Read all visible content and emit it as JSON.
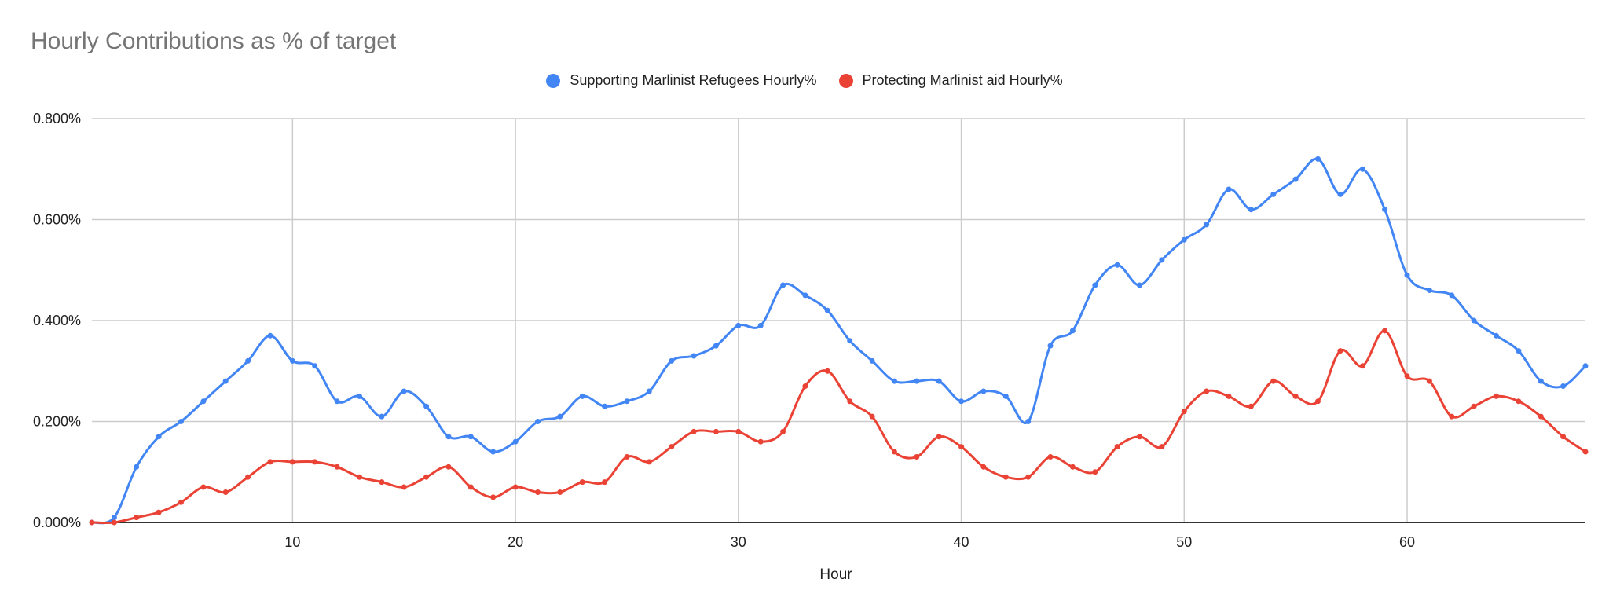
{
  "chart_data": {
    "type": "line",
    "title": "Hourly Contributions as % of target",
    "xlabel": "Hour",
    "ylabel": "",
    "xlim": [
      1,
      68
    ],
    "ylim": [
      0,
      0.008
    ],
    "x_ticks": [
      10,
      20,
      30,
      40,
      50,
      60
    ],
    "y_ticks": [
      0,
      0.002,
      0.004,
      0.006,
      0.008
    ],
    "y_tick_labels": [
      "0.000%",
      "0.200%",
      "0.400%",
      "0.600%",
      "0.800%"
    ],
    "grid": true,
    "legend_position": "top",
    "series": [
      {
        "name": "Supporting Marlinist Refugees Hourly%",
        "color": "#4285f4",
        "x": [
          1,
          2,
          3,
          4,
          5,
          6,
          7,
          8,
          9,
          10,
          11,
          12,
          13,
          14,
          15,
          16,
          17,
          18,
          19,
          20,
          21,
          22,
          23,
          24,
          25,
          26,
          27,
          28,
          29,
          30,
          31,
          32,
          33,
          34,
          35,
          36,
          37,
          38,
          39,
          40,
          41,
          42,
          43,
          44,
          45,
          46,
          47,
          48,
          49,
          50,
          51,
          52,
          53,
          54,
          55,
          56,
          57,
          58,
          59,
          60,
          61,
          62,
          63,
          64,
          65,
          66,
          67,
          68
        ],
        "values": [
          0.0,
          0.0001,
          0.0011,
          0.0017,
          0.002,
          0.0024,
          0.0028,
          0.0032,
          0.0037,
          0.0032,
          0.0031,
          0.0024,
          0.0025,
          0.0021,
          0.0026,
          0.0023,
          0.0017,
          0.0017,
          0.0014,
          0.0016,
          0.002,
          0.0021,
          0.0025,
          0.0023,
          0.0024,
          0.0026,
          0.0032,
          0.0033,
          0.0035,
          0.0039,
          0.0039,
          0.0047,
          0.0045,
          0.0042,
          0.0036,
          0.0032,
          0.0028,
          0.0028,
          0.0028,
          0.0024,
          0.0026,
          0.0025,
          0.002,
          0.0035,
          0.0038,
          0.0047,
          0.0051,
          0.0047,
          0.0052,
          0.0056,
          0.0059,
          0.0066,
          0.0062,
          0.0065,
          0.0068,
          0.0072,
          0.0065,
          0.007,
          0.0062,
          0.0049,
          0.0046,
          0.0045,
          0.004,
          0.0037,
          0.0034,
          0.0028,
          0.0027,
          0.0031
        ]
      },
      {
        "name": "Protecting Marlinist aid Hourly%",
        "color": "#ea4335",
        "x": [
          1,
          2,
          3,
          4,
          5,
          6,
          7,
          8,
          9,
          10,
          11,
          12,
          13,
          14,
          15,
          16,
          17,
          18,
          19,
          20,
          21,
          22,
          23,
          24,
          25,
          26,
          27,
          28,
          29,
          30,
          31,
          32,
          33,
          34,
          35,
          36,
          37,
          38,
          39,
          40,
          41,
          42,
          43,
          44,
          45,
          46,
          47,
          48,
          49,
          50,
          51,
          52,
          53,
          54,
          55,
          56,
          57,
          58,
          59,
          60,
          61,
          62,
          63,
          64,
          65,
          66,
          67,
          68
        ],
        "values": [
          0.0,
          0.0,
          0.0001,
          0.0002,
          0.0004,
          0.0007,
          0.0006,
          0.0009,
          0.0012,
          0.0012,
          0.0012,
          0.0011,
          0.0009,
          0.0008,
          0.0007,
          0.0009,
          0.0011,
          0.0007,
          0.0005,
          0.0007,
          0.0006,
          0.0006,
          0.0008,
          0.0008,
          0.0013,
          0.0012,
          0.0015,
          0.0018,
          0.0018,
          0.0018,
          0.0016,
          0.0018,
          0.0027,
          0.003,
          0.0024,
          0.0021,
          0.0014,
          0.0013,
          0.0017,
          0.0015,
          0.0011,
          0.0009,
          0.0009,
          0.0013,
          0.0011,
          0.001,
          0.0015,
          0.0017,
          0.0015,
          0.0022,
          0.0026,
          0.0025,
          0.0023,
          0.0028,
          0.0025,
          0.0024,
          0.0034,
          0.0031,
          0.0038,
          0.0029,
          0.0028,
          0.0021,
          0.0023,
          0.0025,
          0.0024,
          0.0021,
          0.0017,
          0.0014
        ]
      }
    ]
  }
}
